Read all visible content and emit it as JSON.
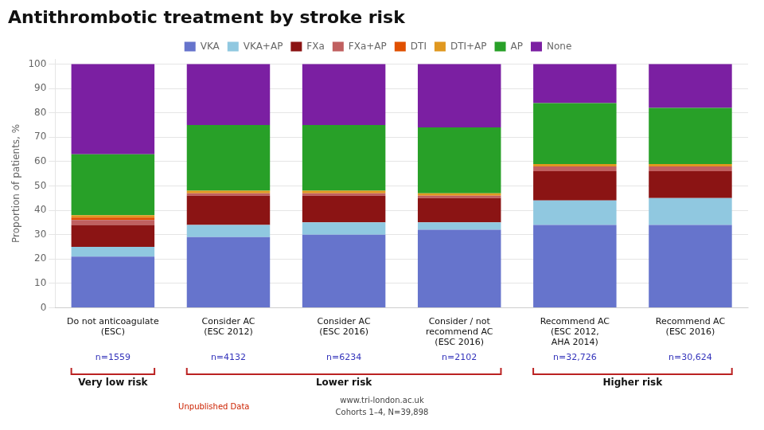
{
  "chart_data": {
    "type": "bar",
    "stacked": true,
    "title": "Antithrombotic treatment by stroke risk",
    "ylabel": "Proportion of patients, %",
    "categories": [
      "Do not anticoagulate\n(ESC)",
      "Consider AC\n(ESC 2012)",
      "Consider AC\n(ESC 2016)",
      "Consider / not\nrecommend AC\n(ESC 2016)",
      "Recommend AC\n(ESC 2012,\nAHA 2014)",
      "Recommend AC\n(ESC 2016)"
    ],
    "n_labels": [
      "n=1559",
      "n=4132",
      "n=6234",
      "n=2102",
      "n=32,726",
      "n=30,624"
    ],
    "n_labels_color": "#3333bb",
    "groups": [
      {
        "label": "Very low risk",
        "span": 1
      },
      {
        "label": "Lower risk",
        "span": 3
      },
      {
        "label": "Higher risk",
        "span": 2
      }
    ],
    "groups_color": "#bb2222",
    "series": [
      {
        "name": "VKA",
        "color": "#6674cc",
        "values": [
          21,
          29,
          30,
          32,
          34,
          34
        ]
      },
      {
        "name": "VKA+AP",
        "color": "#90c8e0",
        "values": [
          4,
          5,
          5,
          3,
          10,
          11
        ]
      },
      {
        "name": "FXa",
        "color": "#8b1414",
        "values": [
          9,
          12,
          11,
          10,
          12,
          11
        ]
      },
      {
        "name": "FXa+AP",
        "color": "#c06060",
        "values": [
          2,
          1,
          1,
          1,
          2,
          2
        ]
      },
      {
        "name": "DTI",
        "color": "#e05000",
        "values": [
          1,
          0,
          0,
          0,
          0,
          0
        ]
      },
      {
        "name": "DTI+AP",
        "color": "#e09820",
        "values": [
          1,
          1,
          1,
          1,
          1,
          1
        ]
      },
      {
        "name": "AP",
        "color": "#28a028",
        "values": [
          25,
          27,
          27,
          27,
          25,
          23
        ]
      },
      {
        "name": "None",
        "color": "#7b1fa2",
        "values": [
          37,
          25,
          25,
          26,
          16,
          18
        ]
      }
    ],
    "ylim": [
      0,
      102
    ],
    "yticks": [
      0,
      10,
      20,
      30,
      40,
      50,
      60,
      70,
      80,
      90,
      100
    ],
    "grid": true,
    "legend": "top",
    "annotations": [
      {
        "text": "Unpublished Data",
        "color": "#cc2200"
      },
      {
        "text": "www.tri-london.ac.uk"
      },
      {
        "text": "Cohorts 1–4, N=39,898"
      }
    ]
  }
}
